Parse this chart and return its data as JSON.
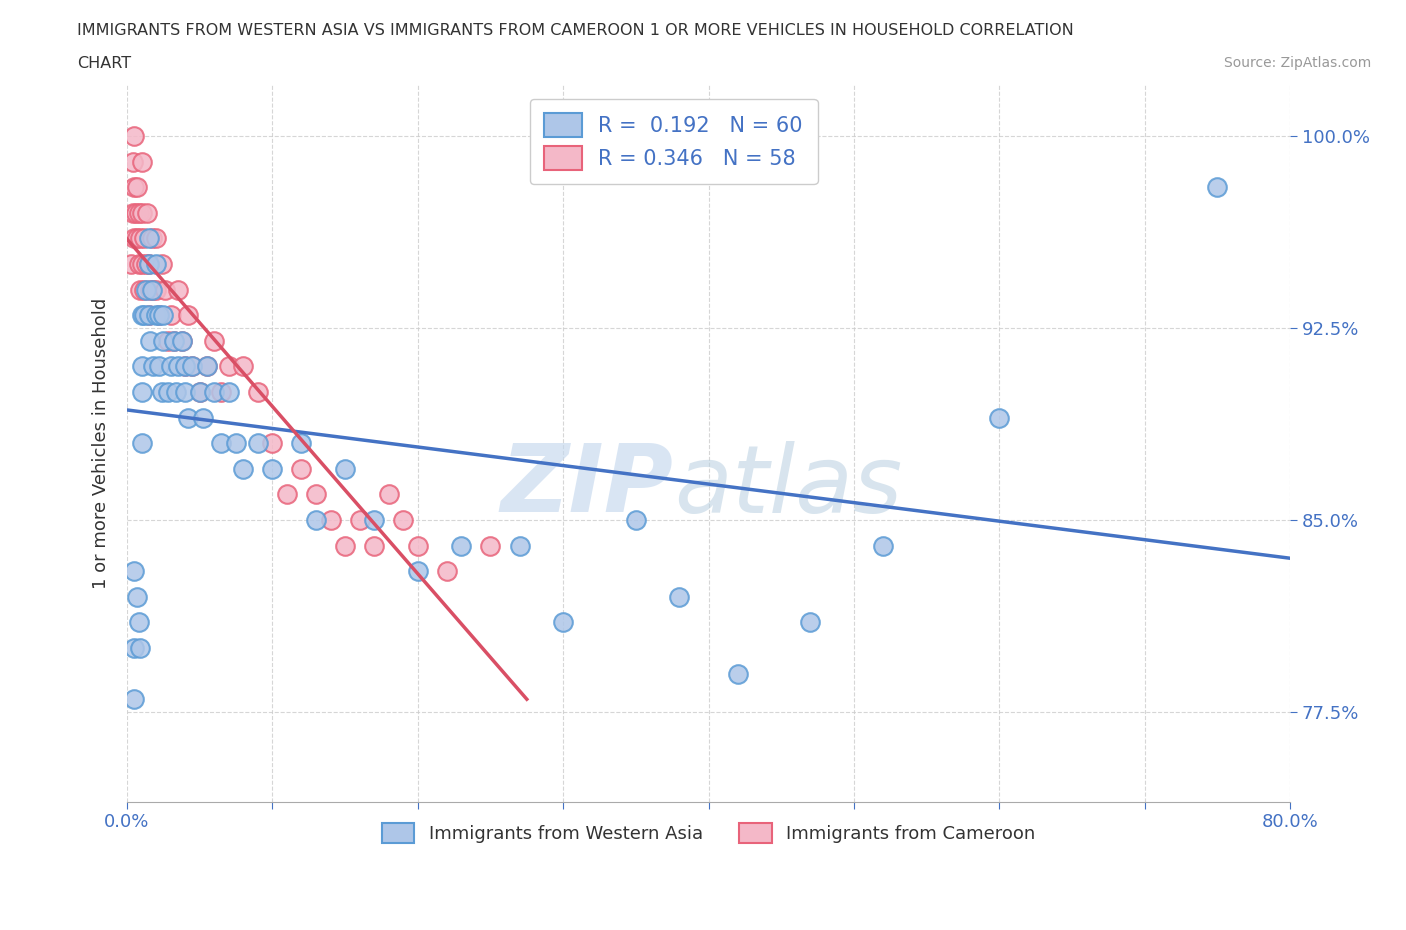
{
  "title_line1": "IMMIGRANTS FROM WESTERN ASIA VS IMMIGRANTS FROM CAMEROON 1 OR MORE VEHICLES IN HOUSEHOLD CORRELATION",
  "title_line2": "CHART",
  "source_text": "Source: ZipAtlas.com",
  "ylabel": "1 or more Vehicles in Household",
  "x_min": 0.0,
  "x_max": 0.8,
  "y_min": 0.74,
  "y_max": 1.02,
  "x_ticks": [
    0.0,
    0.1,
    0.2,
    0.3,
    0.4,
    0.5,
    0.6,
    0.7,
    0.8
  ],
  "y_ticks": [
    0.775,
    0.85,
    0.925,
    1.0
  ],
  "y_tick_labels": [
    "77.5%",
    "85.0%",
    "92.5%",
    "100.0%"
  ],
  "blue_R": 0.192,
  "blue_N": 60,
  "pink_R": 0.346,
  "pink_N": 58,
  "blue_color": "#aec6e8",
  "pink_color": "#f4b8c8",
  "blue_edge_color": "#5b9bd5",
  "pink_edge_color": "#e8637a",
  "blue_line_color": "#4472c4",
  "pink_line_color": "#d94f65",
  "legend_blue_label": "Immigrants from Western Asia",
  "legend_pink_label": "Immigrants from Cameroon",
  "watermark_zip": "ZIP",
  "watermark_atlas": "atlas",
  "blue_scatter_x": [
    0.005,
    0.005,
    0.005,
    0.007,
    0.008,
    0.009,
    0.01,
    0.01,
    0.01,
    0.01,
    0.012,
    0.013,
    0.015,
    0.015,
    0.015,
    0.016,
    0.017,
    0.018,
    0.02,
    0.02,
    0.022,
    0.022,
    0.024,
    0.025,
    0.025,
    0.028,
    0.03,
    0.032,
    0.034,
    0.035,
    0.038,
    0.04,
    0.04,
    0.042,
    0.045,
    0.05,
    0.052,
    0.055,
    0.06,
    0.065,
    0.07,
    0.075,
    0.08,
    0.09,
    0.1,
    0.12,
    0.13,
    0.15,
    0.17,
    0.2,
    0.23,
    0.27,
    0.3,
    0.35,
    0.38,
    0.42,
    0.47,
    0.52,
    0.6,
    0.75
  ],
  "blue_scatter_y": [
    0.8,
    0.83,
    0.78,
    0.82,
    0.81,
    0.8,
    0.93,
    0.91,
    0.9,
    0.88,
    0.93,
    0.94,
    0.96,
    0.95,
    0.93,
    0.92,
    0.94,
    0.91,
    0.95,
    0.93,
    0.93,
    0.91,
    0.9,
    0.92,
    0.93,
    0.9,
    0.91,
    0.92,
    0.9,
    0.91,
    0.92,
    0.91,
    0.9,
    0.89,
    0.91,
    0.9,
    0.89,
    0.91,
    0.9,
    0.88,
    0.9,
    0.88,
    0.87,
    0.88,
    0.87,
    0.88,
    0.85,
    0.87,
    0.85,
    0.83,
    0.84,
    0.84,
    0.81,
    0.85,
    0.82,
    0.79,
    0.81,
    0.84,
    0.89,
    0.98
  ],
  "pink_scatter_x": [
    0.003,
    0.004,
    0.004,
    0.005,
    0.005,
    0.005,
    0.006,
    0.007,
    0.007,
    0.008,
    0.008,
    0.009,
    0.009,
    0.01,
    0.01,
    0.01,
    0.012,
    0.012,
    0.013,
    0.014,
    0.015,
    0.015,
    0.016,
    0.017,
    0.018,
    0.02,
    0.02,
    0.022,
    0.024,
    0.026,
    0.028,
    0.03,
    0.032,
    0.035,
    0.038,
    0.04,
    0.042,
    0.045,
    0.05,
    0.055,
    0.06,
    0.065,
    0.07,
    0.08,
    0.09,
    0.1,
    0.11,
    0.12,
    0.13,
    0.14,
    0.15,
    0.16,
    0.17,
    0.18,
    0.19,
    0.2,
    0.22,
    0.25
  ],
  "pink_scatter_y": [
    0.95,
    0.97,
    0.99,
    0.96,
    0.98,
    1.0,
    0.97,
    0.96,
    0.98,
    0.95,
    0.97,
    0.94,
    0.96,
    0.95,
    0.97,
    0.99,
    0.94,
    0.96,
    0.95,
    0.97,
    0.93,
    0.95,
    0.94,
    0.96,
    0.94,
    0.94,
    0.96,
    0.93,
    0.95,
    0.94,
    0.92,
    0.93,
    0.92,
    0.94,
    0.92,
    0.91,
    0.93,
    0.91,
    0.9,
    0.91,
    0.92,
    0.9,
    0.91,
    0.91,
    0.9,
    0.88,
    0.86,
    0.87,
    0.86,
    0.85,
    0.84,
    0.85,
    0.84,
    0.86,
    0.85,
    0.84,
    0.83,
    0.84
  ]
}
